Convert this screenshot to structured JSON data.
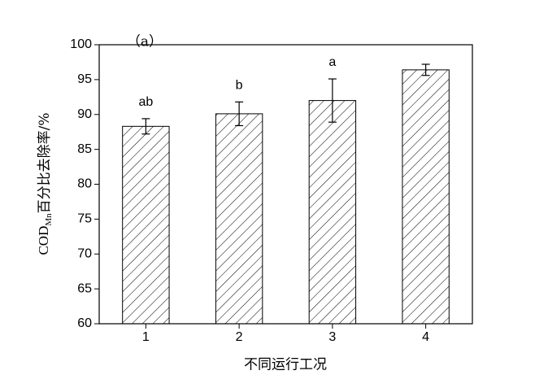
{
  "chart_data": {
    "type": "bar",
    "panel_label": "（a）",
    "y_label": {
      "main": "COD",
      "sub": "Mn",
      "rest": "百分比去除率/%"
    },
    "x_label": "不同运行工况",
    "categories": [
      "1",
      "2",
      "3",
      "4"
    ],
    "values": [
      88.3,
      90.1,
      92.0,
      96.4
    ],
    "errors": [
      1.1,
      1.7,
      3.1,
      0.8
    ],
    "letters": [
      "ab",
      "b",
      "a",
      null
    ],
    "color": "#000000",
    "ylim": [
      60,
      100
    ],
    "yticks": [
      60,
      65,
      70,
      75,
      80,
      85,
      90,
      95,
      100
    ]
  }
}
